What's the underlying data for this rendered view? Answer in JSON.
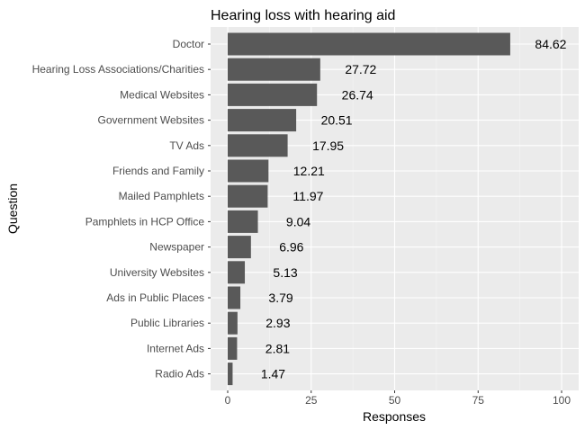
{
  "chart_data": {
    "type": "bar",
    "orientation": "horizontal",
    "title": "Hearing loss with hearing aid",
    "xlabel": "Responses",
    "ylabel": "Question",
    "xlim": [
      0,
      100
    ],
    "xticks": [
      0,
      25,
      50,
      75,
      100
    ],
    "grid": true,
    "colors": {
      "bar": "#595959",
      "panel": "#ebebeb",
      "grid_major": "#ffffff",
      "grid_minor": "#f5f5f5"
    },
    "categories": [
      "Doctor",
      "Hearing Loss Associations/Charities",
      "Medical Websites",
      "Government Websites",
      "TV Ads",
      "Friends and Family",
      "Mailed Pamphlets",
      "Pamphlets in HCP Office",
      "Newspaper",
      "University Websites",
      "Ads in Public Places",
      "Public Libraries",
      "Internet Ads",
      "Radio Ads"
    ],
    "values": [
      84.62,
      27.72,
      26.74,
      20.51,
      17.95,
      12.21,
      11.97,
      9.04,
      6.96,
      5.13,
      3.79,
      2.93,
      2.81,
      1.47
    ],
    "value_labels": [
      "84.62",
      "27.72",
      "26.74",
      "20.51",
      "17.95",
      "12.21",
      "11.97",
      "9.04",
      "6.96",
      "5.13",
      "3.79",
      "2.93",
      "2.81",
      "1.47"
    ]
  }
}
